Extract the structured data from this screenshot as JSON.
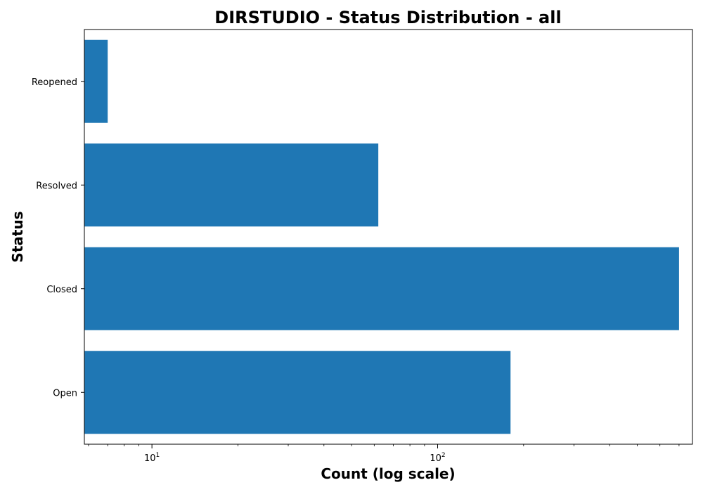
{
  "chart_data": {
    "type": "bar",
    "orientation": "horizontal",
    "title": "DIRSTUDIO - Status Distribution - all",
    "xlabel": "Count (log scale)",
    "ylabel": "Status",
    "x_scale": "log",
    "xlim": [
      5.8,
      780
    ],
    "categories": [
      "Open",
      "Closed",
      "Resolved",
      "Reopened"
    ],
    "values": [
      180,
      700,
      62,
      7
    ],
    "bar_color": "#1f77b4",
    "grid": false,
    "major_ticks": [
      {
        "base": "10",
        "exp": "1",
        "value": 10
      },
      {
        "base": "10",
        "exp": "2",
        "value": 100
      }
    ],
    "minor_ticks": [
      6,
      7,
      8,
      9,
      20,
      30,
      40,
      50,
      60,
      70,
      80,
      90,
      200,
      300,
      400,
      500,
      600,
      700
    ]
  }
}
